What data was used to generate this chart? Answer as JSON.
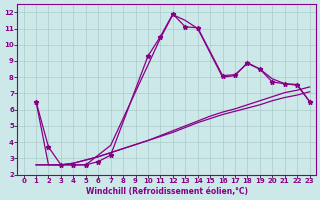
{
  "xlabel": "Windchill (Refroidissement éolien,°C)",
  "bg_color": "#cce8e8",
  "line_color": "#880088",
  "grid_color": "#aacccc",
  "xlim": [
    -0.5,
    23.5
  ],
  "ylim": [
    2,
    12.5
  ],
  "xticks": [
    0,
    1,
    2,
    3,
    4,
    5,
    6,
    7,
    8,
    9,
    10,
    11,
    12,
    13,
    14,
    15,
    16,
    17,
    18,
    19,
    20,
    21,
    22,
    23
  ],
  "yticks": [
    2,
    3,
    4,
    5,
    6,
    7,
    8,
    9,
    10,
    11,
    12
  ],
  "series1_x": [
    1,
    2,
    3,
    4,
    5,
    6,
    7,
    10,
    11,
    12,
    13,
    14,
    16,
    17,
    18,
    19,
    20,
    21,
    22,
    23
  ],
  "series1_y": [
    6.5,
    3.7,
    2.6,
    2.6,
    2.6,
    2.8,
    3.2,
    9.3,
    10.5,
    11.9,
    11.1,
    11.05,
    8.1,
    8.15,
    8.85,
    8.5,
    7.7,
    7.6,
    7.5,
    6.5
  ],
  "series2_x": [
    1,
    2,
    3,
    4,
    5,
    6,
    7,
    11,
    12,
    13,
    14,
    16,
    17,
    18,
    19,
    20,
    21,
    22,
    23
  ],
  "series2_y": [
    6.5,
    2.6,
    2.6,
    2.6,
    2.6,
    3.2,
    3.8,
    10.4,
    11.85,
    11.5,
    11.0,
    8.0,
    8.1,
    8.9,
    8.5,
    7.9,
    7.6,
    7.55,
    6.5
  ],
  "series3_x": [
    1,
    2,
    3,
    4,
    5,
    6,
    7,
    8,
    9,
    10,
    11,
    12,
    13,
    14,
    15,
    16,
    17,
    18,
    19,
    20,
    21,
    22,
    23
  ],
  "series3_y": [
    2.6,
    2.6,
    2.6,
    2.7,
    2.9,
    3.1,
    3.35,
    3.6,
    3.85,
    4.1,
    4.35,
    4.6,
    4.9,
    5.2,
    5.45,
    5.7,
    5.9,
    6.1,
    6.3,
    6.55,
    6.75,
    6.9,
    7.1
  ],
  "series4_x": [
    1,
    2,
    3,
    4,
    5,
    6,
    7,
    8,
    9,
    10,
    11,
    12,
    13,
    14,
    15,
    16,
    17,
    18,
    19,
    20,
    21,
    22,
    23
  ],
  "series4_y": [
    2.6,
    2.6,
    2.6,
    2.7,
    2.9,
    3.1,
    3.35,
    3.6,
    3.85,
    4.1,
    4.4,
    4.7,
    5.0,
    5.3,
    5.6,
    5.85,
    6.05,
    6.3,
    6.55,
    6.8,
    7.05,
    7.2,
    7.4
  ]
}
